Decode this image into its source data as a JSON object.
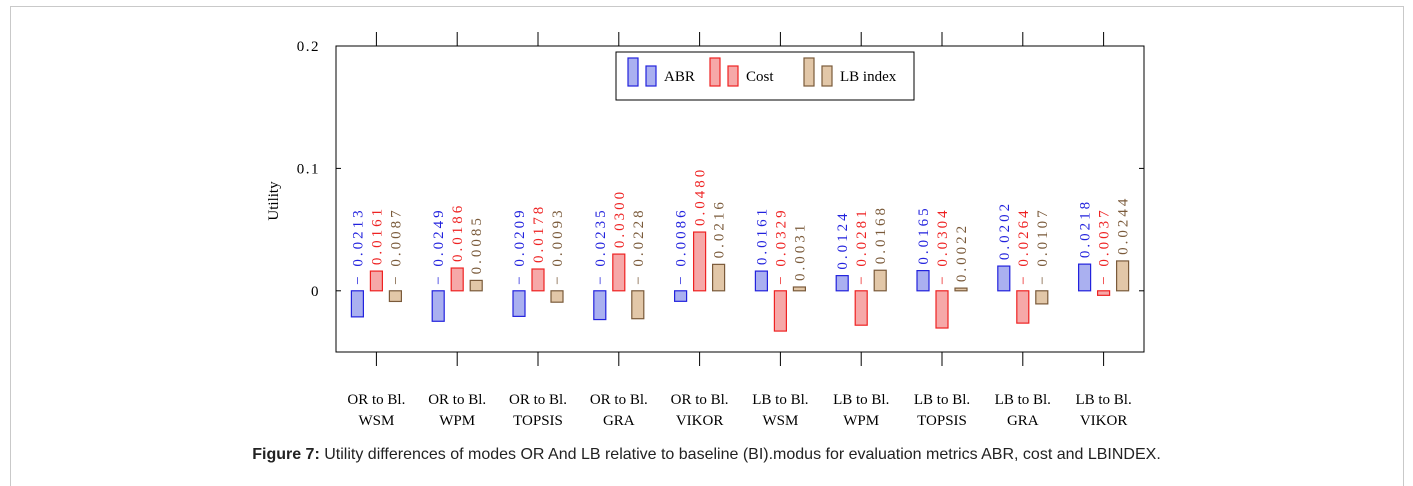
{
  "caption": {
    "label": "Figure 7:",
    "text": "Utility differences of modes OR And LB relative to baseline (BI).modus for evaluation metrics ABR, cost and LBINDEX."
  },
  "chart_data": {
    "type": "bar",
    "title": "",
    "xlabel": "",
    "ylabel": "Utility",
    "ylim": [
      -0.05,
      0.2
    ],
    "yticks": [
      {
        "value": 0.2,
        "label": "0.2"
      },
      {
        "value": 0.1,
        "label": "0.1"
      },
      {
        "value": 0,
        "label": "0"
      }
    ],
    "legend_position": "top-center",
    "categories": [
      [
        "OR to Bl.",
        "WSM"
      ],
      [
        "OR to Bl.",
        "WPM"
      ],
      [
        "OR to Bl.",
        "TOPSIS"
      ],
      [
        "OR to Bl.",
        "GRA"
      ],
      [
        "OR to Bl.",
        "VIKOR"
      ],
      [
        "LB to Bl.",
        "WSM"
      ],
      [
        "LB to Bl.",
        "WPM"
      ],
      [
        "LB to Bl.",
        "TOPSIS"
      ],
      [
        "LB to Bl.",
        "GRA"
      ],
      [
        "LB to Bl.",
        "VIKOR"
      ]
    ],
    "series": [
      {
        "name": "ABR",
        "color": "#2222dd",
        "fill": "#aab0f0",
        "values": [
          -0.0213,
          -0.0249,
          -0.0209,
          -0.0235,
          -0.0086,
          0.0161,
          0.0124,
          0.0165,
          0.0202,
          0.0218
        ],
        "labels": [
          "− 0.0213",
          "− 0.0249",
          "− 0.0209",
          "− 0.0235",
          "− 0.0086",
          "0.0161",
          "0.0124",
          "0.0165",
          "0.0202",
          "0.0218"
        ]
      },
      {
        "name": "Cost",
        "color": "#ee2222",
        "fill": "#f6a8a8",
        "values": [
          0.0161,
          0.0186,
          0.0178,
          0.03,
          0.048,
          -0.0329,
          -0.0281,
          -0.0304,
          -0.0264,
          -0.0037
        ],
        "labels": [
          "0.0161",
          "0.0186",
          "0.0178",
          "0.0300",
          "0.0480",
          "− 0.0329",
          "− 0.0281",
          "− 0.0304",
          "− 0.0264",
          "− 0.0037"
        ]
      },
      {
        "name": "LB index",
        "color": "#7a5a3a",
        "fill": "#e2c7a8",
        "values": [
          -0.0087,
          0.0085,
          -0.0093,
          -0.0228,
          0.0216,
          0.0031,
          0.0168,
          0.0022,
          -0.0107,
          0.0244
        ],
        "labels": [
          "− 0.0087",
          "0.0085",
          "− 0.0093",
          "− 0.0228",
          "0.0216",
          "0.0031",
          "0.0168",
          "0.0022",
          "− 0.0107",
          "0.0244"
        ]
      }
    ]
  }
}
